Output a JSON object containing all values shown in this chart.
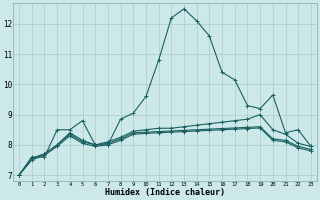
{
  "xlabel": "Humidex (Indice chaleur)",
  "background_color": "#cce8e8",
  "line_color": "#1a6060",
  "grid_color": "#aacccc",
  "xlim": [
    -0.5,
    23.5
  ],
  "ylim": [
    6.8,
    12.7
  ],
  "yticks": [
    7,
    8,
    9,
    10,
    11,
    12
  ],
  "xticks": [
    0,
    1,
    2,
    3,
    4,
    5,
    6,
    7,
    8,
    9,
    10,
    11,
    12,
    13,
    14,
    15,
    16,
    17,
    18,
    19,
    20,
    21,
    22,
    23
  ],
  "series": [
    {
      "x": [
        0,
        1,
        2,
        3,
        4,
        5,
        6,
        7,
        8,
        9,
        10,
        11,
        12,
        13,
        14,
        15,
        16,
        17,
        18,
        19,
        20,
        21,
        22,
        23
      ],
      "y": [
        7.0,
        7.6,
        7.6,
        8.5,
        8.5,
        8.8,
        8.0,
        8.0,
        8.85,
        9.05,
        9.6,
        10.8,
        12.2,
        12.5,
        12.1,
        11.6,
        10.4,
        10.15,
        9.3,
        9.2,
        9.65,
        8.4,
        8.5,
        7.95
      ]
    },
    {
      "x": [
        0,
        1,
        2,
        3,
        4,
        5,
        6,
        7,
        8,
        9,
        10,
        11,
        12,
        13,
        14,
        15,
        16,
        17,
        18,
        19,
        20,
        21,
        22,
        23
      ],
      "y": [
        7.0,
        7.55,
        7.7,
        8.0,
        8.4,
        8.15,
        8.0,
        8.1,
        8.25,
        8.45,
        8.5,
        8.55,
        8.55,
        8.6,
        8.65,
        8.7,
        8.75,
        8.8,
        8.85,
        9.0,
        8.5,
        8.35,
        8.05,
        7.95
      ]
    },
    {
      "x": [
        0,
        1,
        2,
        3,
        4,
        5,
        6,
        7,
        8,
        9,
        10,
        11,
        12,
        13,
        14,
        15,
        16,
        17,
        18,
        19,
        20,
        21,
        22,
        23
      ],
      "y": [
        7.0,
        7.55,
        7.7,
        8.0,
        8.35,
        8.1,
        8.0,
        8.05,
        8.2,
        8.4,
        8.42,
        8.44,
        8.46,
        8.48,
        8.5,
        8.52,
        8.54,
        8.56,
        8.58,
        8.6,
        8.2,
        8.15,
        7.95,
        7.85
      ]
    },
    {
      "x": [
        0,
        1,
        2,
        3,
        4,
        5,
        6,
        7,
        8,
        9,
        10,
        11,
        12,
        13,
        14,
        15,
        16,
        17,
        18,
        19,
        20,
        21,
        22,
        23
      ],
      "y": [
        7.0,
        7.5,
        7.65,
        7.95,
        8.3,
        8.05,
        7.95,
        8.0,
        8.15,
        8.35,
        8.38,
        8.4,
        8.42,
        8.44,
        8.46,
        8.48,
        8.5,
        8.52,
        8.54,
        8.56,
        8.15,
        8.1,
        7.9,
        7.8
      ]
    }
  ]
}
